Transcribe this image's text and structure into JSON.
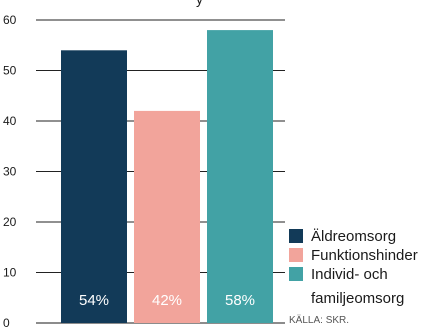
{
  "chart_data": {
    "type": "bar",
    "top_fragment": "y",
    "categories": [
      "Äldreomsorg",
      "Funktionshinder",
      "Individ- och familjeomsorg"
    ],
    "values": [
      54,
      42,
      58
    ],
    "value_labels": [
      "54%",
      "42%",
      "58%"
    ],
    "colors": [
      "#123a58",
      "#f2a49b",
      "#42a2a5"
    ],
    "ylim": [
      0,
      60
    ],
    "yticks": [
      {
        "value": 0,
        "label": "0"
      },
      {
        "value": 10,
        "label": "10"
      },
      {
        "value": 20,
        "label": "20"
      },
      {
        "value": 30,
        "label": "30"
      },
      {
        "value": 40,
        "label": "40"
      },
      {
        "value": 50,
        "label": "50"
      },
      {
        "value": 60,
        "label": "60"
      }
    ],
    "grid": true,
    "legend_position": "bottom-right",
    "legend": [
      {
        "lines": [
          "Äldreomsorg"
        ]
      },
      {
        "lines": [
          "Funktionshinder"
        ]
      },
      {
        "lines": [
          "Individ- och",
          "familjeomsorg"
        ]
      }
    ],
    "source": "KÄLLA: SKR."
  }
}
